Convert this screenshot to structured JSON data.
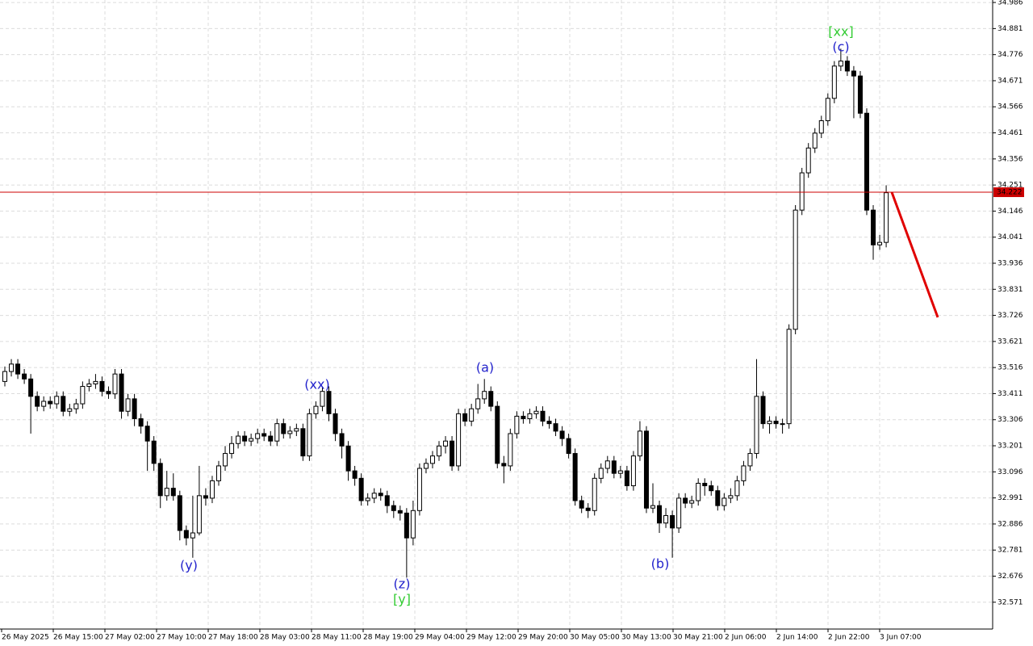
{
  "chart_data": {
    "type": "candlestick",
    "open": [
      33.46,
      33.5,
      33.53,
      33.49,
      33.47,
      33.4,
      33.36,
      33.38,
      33.37,
      33.4,
      33.34,
      33.35,
      33.37,
      33.44,
      33.45,
      33.46,
      33.42,
      33.41,
      33.49,
      33.34,
      33.39,
      33.31,
      33.28,
      33.22,
      33.13,
      33.0,
      33.03,
      33.0,
      32.86,
      32.83,
      32.85,
      33.0,
      32.99,
      33.06,
      33.12,
      33.17,
      33.21,
      33.24,
      33.22,
      33.23,
      33.25,
      33.24,
      33.22,
      33.29,
      33.25,
      33.26,
      33.27,
      33.16,
      33.33,
      33.36,
      33.42,
      33.33,
      33.25,
      33.2,
      33.1,
      33.07,
      32.98,
      32.99,
      33.01,
      33.0,
      32.96,
      32.94,
      32.93,
      32.83,
      32.94,
      33.11,
      33.13,
      33.16,
      33.2,
      33.22,
      33.12,
      33.33,
      33.3,
      33.35,
      33.39,
      33.42,
      33.36,
      33.13,
      33.12,
      33.25,
      33.32,
      33.31,
      33.33,
      33.34,
      33.3,
      33.29,
      33.26,
      33.23,
      33.17,
      32.98,
      32.95,
      32.94,
      33.07,
      33.11,
      33.14,
      33.09,
      33.1,
      33.04,
      33.16,
      33.26,
      32.95,
      32.96,
      32.89,
      32.92,
      32.87,
      32.99,
      32.97,
      32.98,
      33.05,
      33.04,
      33.02,
      32.96,
      32.99,
      33.0,
      33.06,
      33.12,
      33.17,
      33.4,
      33.29,
      33.3,
      33.29,
      33.29,
      33.67,
      34.15,
      34.3,
      34.4,
      34.46,
      34.51,
      34.6,
      34.73,
      34.75,
      34.71,
      34.69,
      34.54,
      34.15,
      34.01,
      34.02
    ],
    "high": [
      33.52,
      33.55,
      33.55,
      33.51,
      33.49,
      33.42,
      33.4,
      33.4,
      33.42,
      33.42,
      33.37,
      33.39,
      33.46,
      33.47,
      33.49,
      33.48,
      33.44,
      33.51,
      33.51,
      33.41,
      33.41,
      33.33,
      33.3,
      33.24,
      33.15,
      33.1,
      33.09,
      33.02,
      32.88,
      33.0,
      33.12,
      33.03,
      33.08,
      33.14,
      33.2,
      33.24,
      33.26,
      33.26,
      33.25,
      33.27,
      33.27,
      33.26,
      33.31,
      33.31,
      33.28,
      33.29,
      33.29,
      33.35,
      33.38,
      33.44,
      33.44,
      33.35,
      33.27,
      33.22,
      33.12,
      33.09,
      33.01,
      33.03,
      33.03,
      33.02,
      32.98,
      32.96,
      32.95,
      32.98,
      33.13,
      33.15,
      33.18,
      33.22,
      33.24,
      33.24,
      33.35,
      33.35,
      33.37,
      33.45,
      33.47,
      33.44,
      33.38,
      33.16,
      33.27,
      33.34,
      33.34,
      33.35,
      33.36,
      33.36,
      33.32,
      33.31,
      33.28,
      33.25,
      33.19,
      33.0,
      32.97,
      33.09,
      33.13,
      33.16,
      33.16,
      33.12,
      33.12,
      33.18,
      33.3,
      33.28,
      33.05,
      32.98,
      32.95,
      32.94,
      33.01,
      33.01,
      33.0,
      33.07,
      33.07,
      33.06,
      33.04,
      33.01,
      33.03,
      33.08,
      33.14,
      33.19,
      33.55,
      33.42,
      33.32,
      33.32,
      33.31,
      33.69,
      34.17,
      34.32,
      34.42,
      34.48,
      34.53,
      34.62,
      34.75,
      34.8,
      34.77,
      34.73,
      34.71,
      34.56,
      34.17,
      34.05,
      34.25
    ],
    "low": [
      33.44,
      33.48,
      33.47,
      33.45,
      33.25,
      33.34,
      33.34,
      33.35,
      33.35,
      33.32,
      33.32,
      33.33,
      33.35,
      33.42,
      33.43,
      33.4,
      33.39,
      33.39,
      33.31,
      33.32,
      33.28,
      33.25,
      33.1,
      33.1,
      32.95,
      32.98,
      32.98,
      32.82,
      32.8,
      32.75,
      32.84,
      32.96,
      32.97,
      33.04,
      33.1,
      33.15,
      33.19,
      33.2,
      33.2,
      33.21,
      33.22,
      33.2,
      33.2,
      33.23,
      33.23,
      33.24,
      33.14,
      33.14,
      33.31,
      33.34,
      33.3,
      33.22,
      33.15,
      33.06,
      33.04,
      32.96,
      32.96,
      32.97,
      32.98,
      32.93,
      32.91,
      32.9,
      32.67,
      32.8,
      32.92,
      33.09,
      33.11,
      33.14,
      33.17,
      33.1,
      33.1,
      33.28,
      33.28,
      33.33,
      33.37,
      33.34,
      33.11,
      33.05,
      33.1,
      33.23,
      33.29,
      33.29,
      33.31,
      33.28,
      33.27,
      33.24,
      33.2,
      33.15,
      32.96,
      32.93,
      32.91,
      32.92,
      33.05,
      33.09,
      33.07,
      33.07,
      33.02,
      33.02,
      33.14,
      32.93,
      32.93,
      32.85,
      32.87,
      32.75,
      32.85,
      32.95,
      32.95,
      32.96,
      33.0,
      33.0,
      32.94,
      32.94,
      32.97,
      32.98,
      33.04,
      33.1,
      33.15,
      33.27,
      33.25,
      33.27,
      33.25,
      33.27,
      33.65,
      34.13,
      34.28,
      34.38,
      34.44,
      34.49,
      34.58,
      34.71,
      34.69,
      34.52,
      34.52,
      34.13,
      33.95,
      33.99,
      34.0
    ],
    "close": [
      33.5,
      33.53,
      33.49,
      33.47,
      33.4,
      33.36,
      33.38,
      33.37,
      33.4,
      33.34,
      33.35,
      33.37,
      33.44,
      33.45,
      33.46,
      33.42,
      33.41,
      33.49,
      33.34,
      33.39,
      33.31,
      33.28,
      33.22,
      33.13,
      33.0,
      33.03,
      33.0,
      32.86,
      32.83,
      32.85,
      33.0,
      32.99,
      33.06,
      33.12,
      33.17,
      33.21,
      33.24,
      33.22,
      33.23,
      33.25,
      33.24,
      33.22,
      33.29,
      33.25,
      33.26,
      33.27,
      33.16,
      33.33,
      33.36,
      33.42,
      33.33,
      33.25,
      33.2,
      33.1,
      33.07,
      32.98,
      32.99,
      33.01,
      33.0,
      32.96,
      32.94,
      32.93,
      32.83,
      32.94,
      33.11,
      33.13,
      33.16,
      33.2,
      33.22,
      33.12,
      33.33,
      33.3,
      33.35,
      33.39,
      33.42,
      33.36,
      33.13,
      33.12,
      33.25,
      33.32,
      33.31,
      33.33,
      33.34,
      33.3,
      33.29,
      33.26,
      33.23,
      33.17,
      32.98,
      32.95,
      32.94,
      33.07,
      33.11,
      33.14,
      33.09,
      33.1,
      33.04,
      33.16,
      33.26,
      32.95,
      32.96,
      32.89,
      32.92,
      32.87,
      32.99,
      32.97,
      32.98,
      33.05,
      33.04,
      33.02,
      32.96,
      32.99,
      33.0,
      33.06,
      33.12,
      33.17,
      33.4,
      33.29,
      33.3,
      33.29,
      33.29,
      33.67,
      34.15,
      34.3,
      34.4,
      34.46,
      34.51,
      34.6,
      34.73,
      34.75,
      34.71,
      34.69,
      34.54,
      34.15,
      34.01,
      34.02,
      34.22
    ],
    "x_labels": [
      "26 May 2025",
      "26 May 15:00",
      "27 May 02:00",
      "27 May 10:00",
      "27 May 18:00",
      "28 May 03:00",
      "28 May 11:00",
      "28 May 19:00",
      "29 May 04:00",
      "29 May 12:00",
      "29 May 20:00",
      "30 May 05:00",
      "30 May 13:00",
      "30 May 21:00",
      "2 Jun 06:00",
      "2 Jun 14:00",
      "2 Jun 22:00",
      "3 Jun 07:00"
    ],
    "ylim": [
      32.463,
      34.996
    ],
    "yticks": [
      32.571,
      32.676,
      32.781,
      32.886,
      32.991,
      33.096,
      33.201,
      33.306,
      33.411,
      33.516,
      33.621,
      33.726,
      33.831,
      33.936,
      34.041,
      34.146,
      34.251,
      34.356,
      34.461,
      34.566,
      34.671,
      34.776,
      34.881,
      34.986
    ],
    "grid": true,
    "current_price": 34.222,
    "current_price_color": "#cc0000",
    "bull_color": "#ffffff",
    "bear_color": "#000000",
    "annotations": [
      "[xx]",
      "(c)",
      "(xx)",
      "(a)",
      "(y)",
      "(z)",
      "[y]",
      "(b)"
    ],
    "annotation_colors": [
      "#33cc33",
      "#2222cc",
      "#2222cc",
      "#2222cc",
      "#2222cc",
      "#2222cc",
      "#33cc33",
      "#2222cc"
    ]
  }
}
